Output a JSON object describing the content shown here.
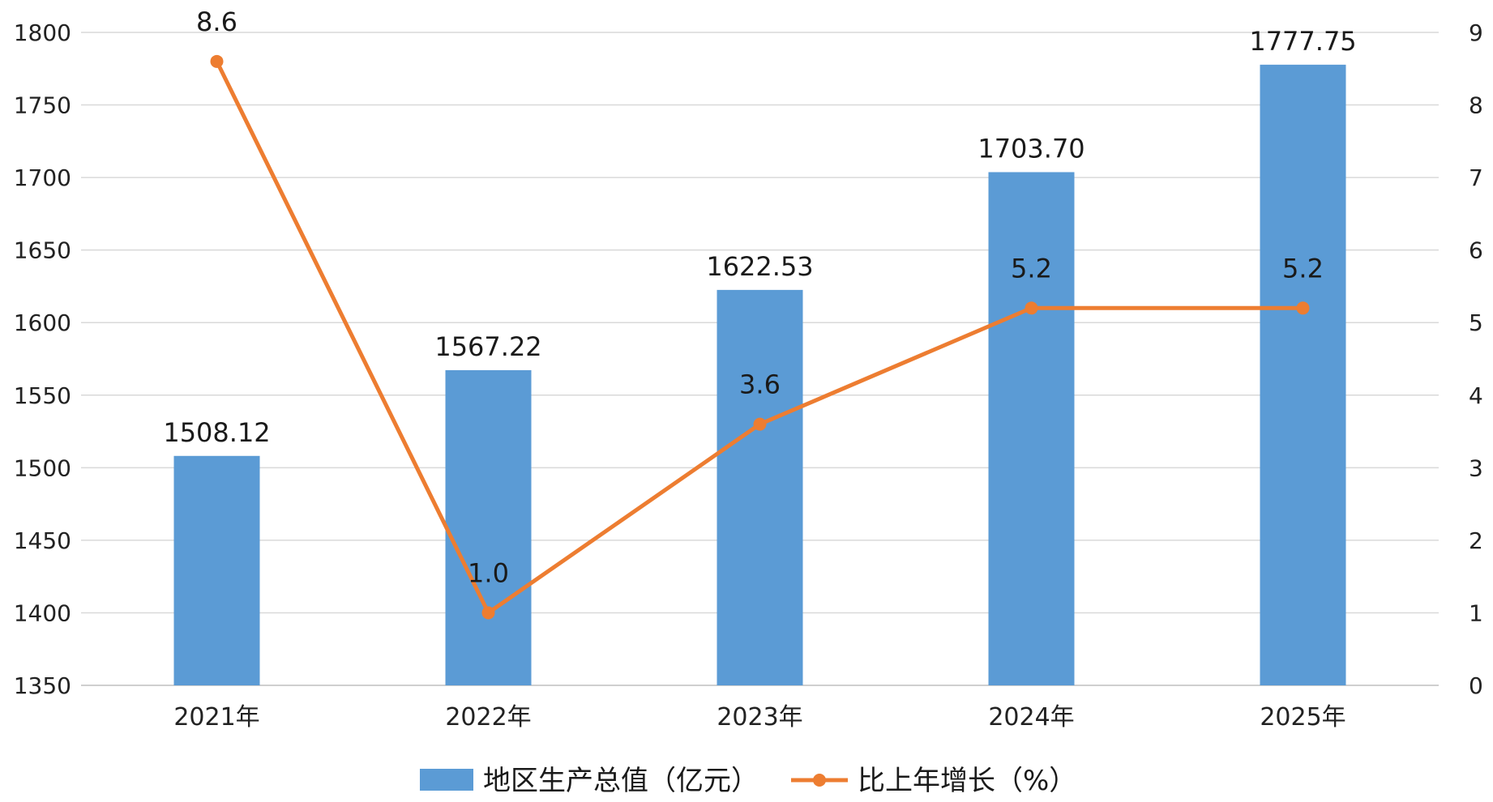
{
  "chart_data": {
    "type": "bar+line",
    "categories": [
      "2021年",
      "2022年",
      "2023年",
      "2024年",
      "2025年"
    ],
    "series": [
      {
        "name": "地区生产总值（亿元）",
        "type": "bar",
        "axis": "left",
        "color": "#5B9BD5",
        "values": [
          1508.12,
          1567.22,
          1622.53,
          1703.7,
          1777.75
        ],
        "labels": [
          "1508.12",
          "1567.22",
          "1622.53",
          "1703.70",
          "1777.75"
        ]
      },
      {
        "name": "比上年增长（%）",
        "type": "line",
        "axis": "right",
        "color": "#ED7D31",
        "values": [
          8.6,
          1.0,
          3.6,
          5.2,
          5.2
        ],
        "labels": [
          "8.6",
          "1.0",
          "3.6",
          "5.2",
          "5.2"
        ]
      }
    ],
    "y_left": {
      "range": [
        1350,
        1800
      ],
      "ticks": [
        "1800",
        "1750",
        "1700",
        "1650",
        "1600",
        "1550",
        "1500",
        "1450",
        "1400",
        "1350"
      ]
    },
    "y_right": {
      "range": [
        0,
        9
      ],
      "ticks": [
        "9",
        "8",
        "7",
        "6",
        "5",
        "4",
        "3",
        "2",
        "1",
        "0"
      ]
    },
    "grid": true,
    "legend": "bottom-center"
  }
}
